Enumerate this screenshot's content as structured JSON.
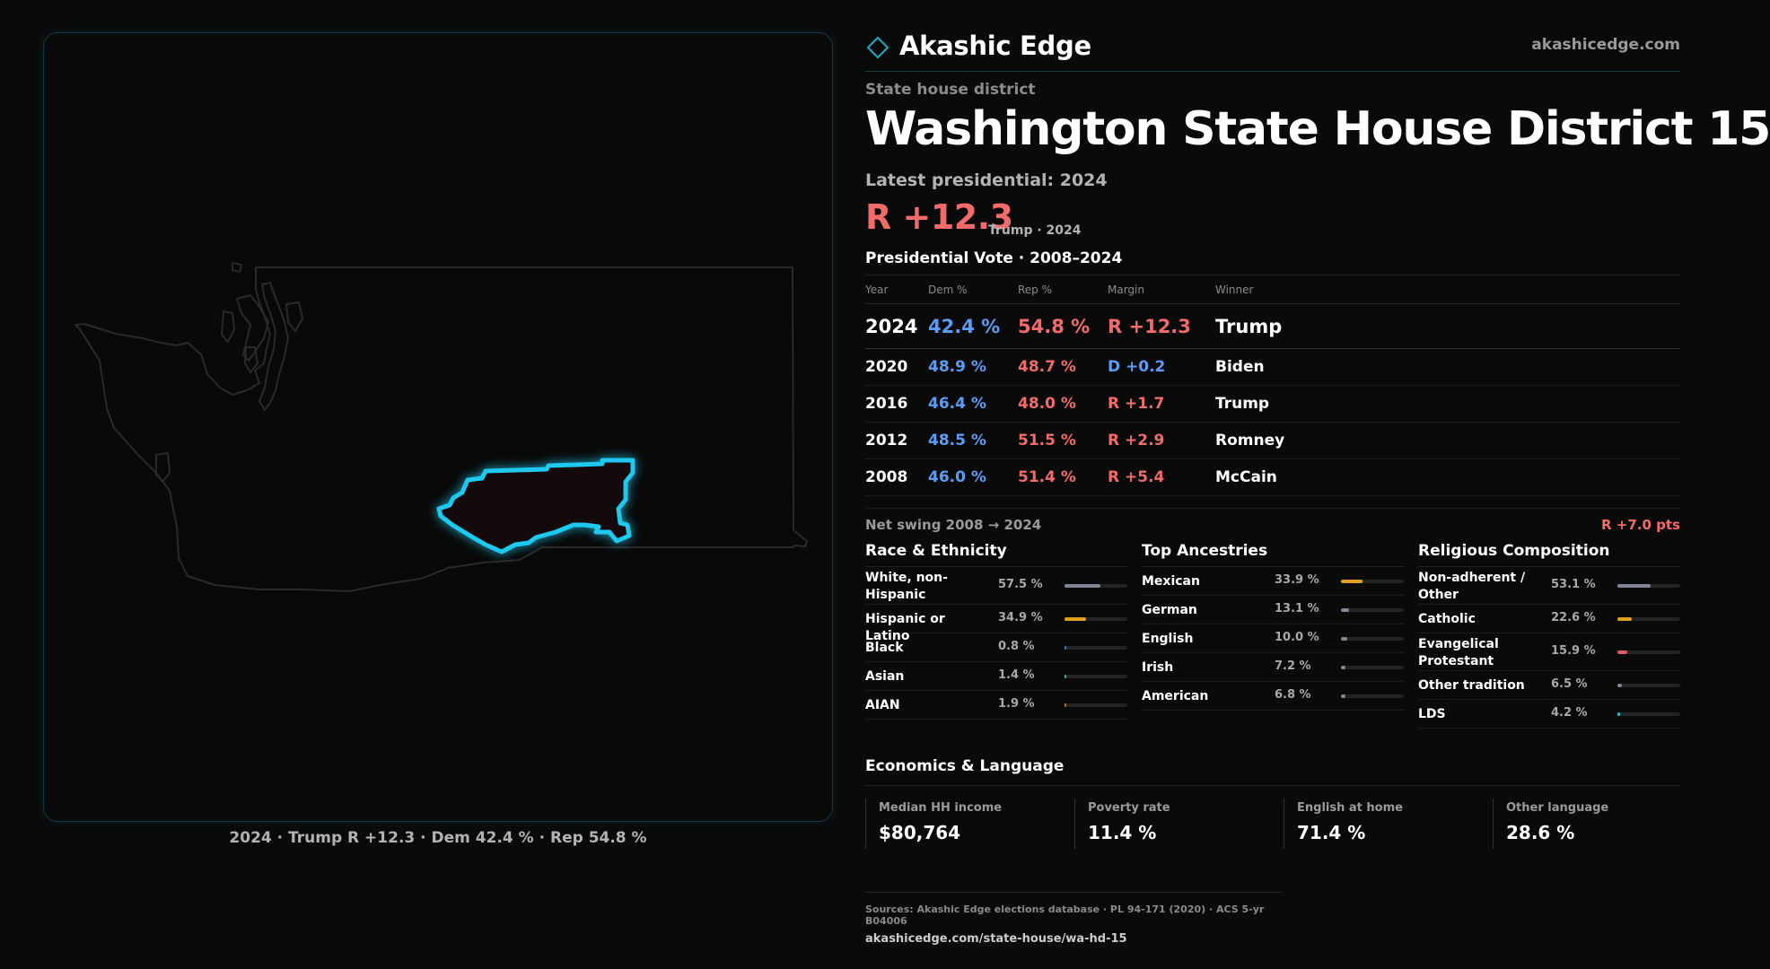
{
  "brand": {
    "name": "Akashic Edge",
    "url": "akashicedge.com",
    "accent": "#1fa3b5"
  },
  "page": {
    "eyebrow": "State house district",
    "title": "Washington State House District 15",
    "latest_label": "Latest presidential: 2024",
    "headline_margin": "R +12.3",
    "headline_sub": "Trump · 2024"
  },
  "map": {
    "caption": "2024 · Trump R +12.3 · Dem 42.4 % · Rep 54.8 %",
    "highlight_color": "#1ec8ee",
    "outline_color": "#2a2a2a"
  },
  "votes": {
    "title": "Presidential Vote · 2008–2024",
    "headers": {
      "year": "Year",
      "dem": "Dem %",
      "rep": "Rep %",
      "margin": "Margin",
      "winner": "Winner"
    },
    "rows": [
      {
        "year": "2024",
        "dem": "42.4 %",
        "rep": "54.8 %",
        "margin": "R +12.3",
        "winner": "Trump",
        "party": "rep"
      },
      {
        "year": "2020",
        "dem": "48.9 %",
        "rep": "48.7 %",
        "margin": "D +0.2",
        "winner": "Biden",
        "party": "dem"
      },
      {
        "year": "2016",
        "dem": "46.4 %",
        "rep": "48.0 %",
        "margin": "R +1.7",
        "winner": "Trump",
        "party": "rep"
      },
      {
        "year": "2012",
        "dem": "48.5 %",
        "rep": "51.5 %",
        "margin": "R +2.9",
        "winner": "Romney",
        "party": "rep"
      },
      {
        "year": "2008",
        "dem": "46.0 %",
        "rep": "51.4 %",
        "margin": "R +5.4",
        "winner": "McCain",
        "party": "rep"
      }
    ],
    "swing_label": "Net swing 2008 → 2024",
    "swing_value": "R +7.0 pts"
  },
  "race": {
    "title": "Race & Ethnicity",
    "rows": [
      {
        "label": "White, non-Hispanic",
        "value": "57.5 %",
        "share": 0.575,
        "color": "#7f8795"
      },
      {
        "label": "Hispanic or Latino",
        "value": "34.9 %",
        "share": 0.349,
        "color": "#e0a020"
      },
      {
        "label": "Black",
        "value": "0.8 %",
        "share": 0.008,
        "color": "#3a7bd5"
      },
      {
        "label": "Asian",
        "value": "1.4 %",
        "share": 0.014,
        "color": "#2fb58a"
      },
      {
        "label": "AIAN",
        "value": "1.9 %",
        "share": 0.019,
        "color": "#d2691e"
      }
    ]
  },
  "ancestry": {
    "title": "Top Ancestries",
    "rows": [
      {
        "label": "Mexican",
        "value": "33.9 %",
        "share": 0.339,
        "color": "#e0a020"
      },
      {
        "label": "German",
        "value": "13.1 %",
        "share": 0.131,
        "color": "#7f8795"
      },
      {
        "label": "English",
        "value": "10.0 %",
        "share": 0.1,
        "color": "#7f8795"
      },
      {
        "label": "Irish",
        "value": "7.2 %",
        "share": 0.072,
        "color": "#7f8795"
      },
      {
        "label": "American",
        "value": "6.8 %",
        "share": 0.068,
        "color": "#7f8795"
      }
    ]
  },
  "religion": {
    "title": "Religious Composition",
    "rows": [
      {
        "label": "Non-adherent / Other",
        "value": "53.1 %",
        "share": 0.531,
        "color": "#7f8795"
      },
      {
        "label": "Catholic",
        "value": "22.6 %",
        "share": 0.226,
        "color": "#e0a020"
      },
      {
        "label": "Evangelical Protestant",
        "value": "15.9 %",
        "share": 0.159,
        "color": "#e05a5a"
      },
      {
        "label": "Other tradition",
        "value": "6.5 %",
        "share": 0.065,
        "color": "#7f8795"
      },
      {
        "label": "LDS",
        "value": "4.2 %",
        "share": 0.042,
        "color": "#2bb5c5"
      }
    ]
  },
  "economics": {
    "title": "Economics & Language",
    "items": [
      {
        "label": "Median HH income",
        "value": "$80,764"
      },
      {
        "label": "Poverty rate",
        "value": "11.4 %"
      },
      {
        "label": "English at home",
        "value": "71.4 %"
      },
      {
        "label": "Other language",
        "value": "28.6 %"
      }
    ]
  },
  "footer": {
    "sources": "Sources: Akashic Edge elections database · PL 94-171 (2020) · ACS 5-yr B04006",
    "link": "akashicedge.com/state-house/wa-hd-15"
  }
}
